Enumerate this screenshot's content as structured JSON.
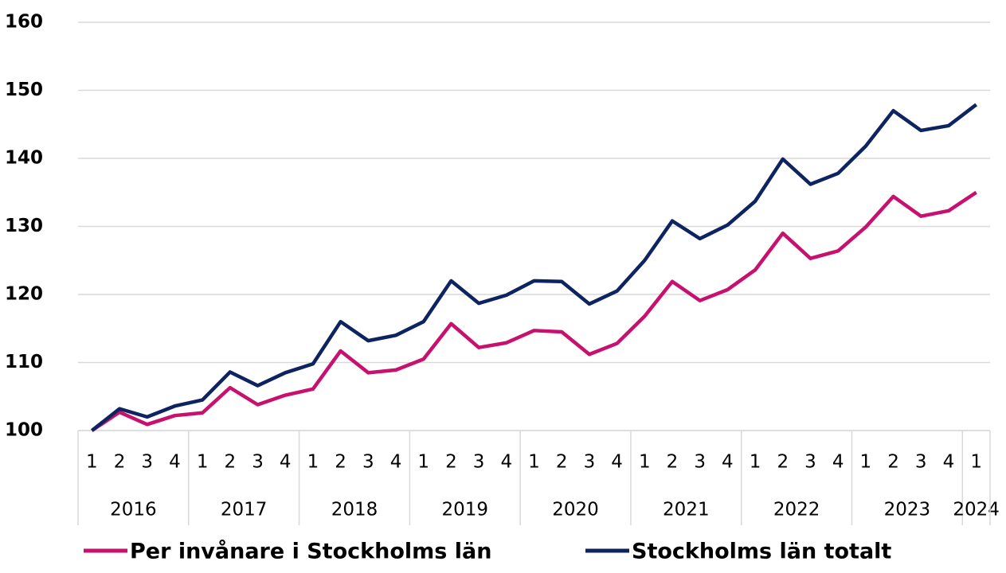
{
  "chart_data": {
    "type": "line",
    "category_groups": [
      {
        "label": "2016",
        "categories": [
          "1",
          "2",
          "3",
          "4"
        ]
      },
      {
        "label": "2017",
        "categories": [
          "1",
          "2",
          "3",
          "4"
        ]
      },
      {
        "label": "2018",
        "categories": [
          "1",
          "2",
          "3",
          "4"
        ]
      },
      {
        "label": "2019",
        "categories": [
          "1",
          "2",
          "3",
          "4"
        ]
      },
      {
        "label": "2020",
        "categories": [
          "1",
          "2",
          "3",
          "4"
        ]
      },
      {
        "label": "2021",
        "categories": [
          "1",
          "2",
          "3",
          "4"
        ]
      },
      {
        "label": "2022",
        "categories": [
          "1",
          "2",
          "3",
          "4"
        ]
      },
      {
        "label": "2023",
        "categories": [
          "1",
          "2",
          "3",
          "4"
        ]
      },
      {
        "label": "2024",
        "categories": [
          "1"
        ]
      }
    ],
    "series": [
      {
        "name": "Per invånare i Stockholms län",
        "color": "#c8106e",
        "values": [
          100,
          102.7,
          100.9,
          102.2,
          102.6,
          106.3,
          103.8,
          105.2,
          106.1,
          111.7,
          108.5,
          108.9,
          110.5,
          115.7,
          112.2,
          112.9,
          114.7,
          114.5,
          111.2,
          112.8,
          116.8,
          121.9,
          119.1,
          120.7,
          123.6,
          129.0,
          125.3,
          126.4,
          129.9,
          134.4,
          131.5,
          132.3,
          135.0
        ]
      },
      {
        "name": "Stockholms län totalt",
        "color": "#0d2461",
        "values": [
          100,
          103.2,
          102.0,
          103.6,
          104.5,
          108.6,
          106.6,
          108.5,
          109.8,
          116.0,
          113.2,
          114.0,
          116.0,
          122.0,
          118.7,
          119.9,
          122.0,
          121.9,
          118.6,
          120.5,
          125.0,
          130.8,
          128.2,
          130.2,
          133.7,
          139.9,
          136.2,
          137.8,
          141.8,
          147.0,
          144.1,
          144.8,
          147.9
        ]
      }
    ],
    "ylim": [
      100,
      160
    ],
    "yticks": [
      100,
      110,
      120,
      130,
      140,
      150,
      160
    ],
    "grid": true,
    "legend": "bottom"
  }
}
